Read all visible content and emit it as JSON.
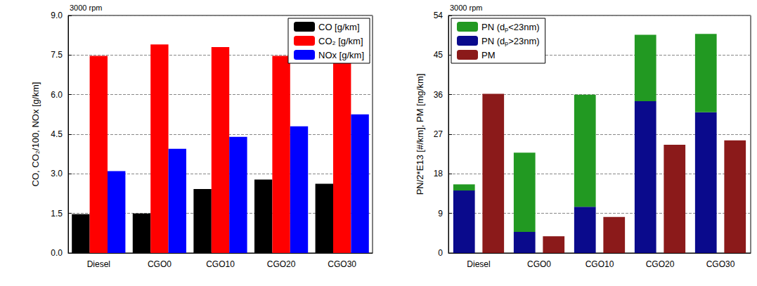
{
  "chart_data": [
    {
      "type": "bar",
      "annotation": "3000 rpm",
      "y_label": "CO, CO₂/100, NOx [g/km]",
      "categories": [
        "Diesel",
        "CGO0",
        "CGO10",
        "CGO20",
        "CGO30"
      ],
      "series": [
        {
          "name": "CO [g/km]",
          "color": "#000000",
          "values": [
            1.47,
            1.5,
            2.42,
            2.78,
            2.62
          ]
        },
        {
          "name": "CO₂ [g/km]",
          "color": "#ff0000",
          "values": [
            7.47,
            7.9,
            7.8,
            7.47,
            7.38
          ]
        },
        {
          "name": "NOx [g/km]",
          "color": "#0000ff",
          "values": [
            3.1,
            3.95,
            4.4,
            4.8,
            5.25
          ]
        }
      ],
      "ylim": [
        0,
        9
      ],
      "yticks": [
        {
          "value": 0,
          "label": "0.0"
        },
        1.5,
        {
          "value": 3,
          "label": "3.0"
        },
        4.5,
        {
          "value": 6,
          "label": "6.0"
        },
        7.5,
        {
          "value": 9,
          "label": "9.0"
        }
      ],
      "grid": true,
      "legend": "top-right"
    },
    {
      "type": "bar",
      "annotation": "3000 rpm",
      "y_label": "PN/2*E13 [#/km], PM [mg/km]",
      "categories": [
        "Diesel",
        "CGO0",
        "CGO10",
        "CGO20",
        "CGO30"
      ],
      "series": [
        {
          "name": "PN (dₚ<23nm)",
          "color": "#229922",
          "values": [
            1.4,
            18.0,
            25.5,
            15.1,
            17.8
          ],
          "stacked": true
        },
        {
          "name": "PN (dₚ>23nm)",
          "color": "#0a0a8c",
          "values": [
            14.2,
            4.8,
            10.5,
            34.5,
            32.0
          ],
          "stacked": true
        },
        {
          "name": "PM",
          "color": "#8b1a1a",
          "values": [
            36.2,
            3.8,
            8.2,
            24.6,
            25.6
          ]
        }
      ],
      "ylim": [
        0,
        54
      ],
      "yticks": [
        0,
        9,
        18,
        27,
        36,
        45,
        54
      ],
      "grid": true,
      "legend": "top-left"
    }
  ]
}
